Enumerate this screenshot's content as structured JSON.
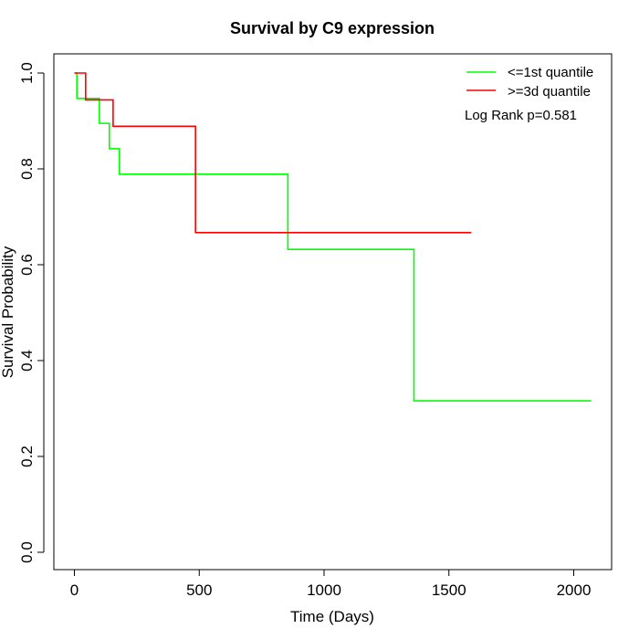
{
  "chart_data": {
    "type": "line",
    "title": "Survival by C9 expression",
    "xlabel": "Time (Days)",
    "ylabel": "Survival Probability",
    "xlim": [
      0,
      2070
    ],
    "ylim": [
      0,
      1.0
    ],
    "x_ticks": [
      "0",
      "500",
      "1000",
      "1500",
      "2000"
    ],
    "y_ticks": [
      "0.0",
      "0.2",
      "0.4",
      "0.6",
      "0.8",
      "1.0"
    ],
    "grid": false,
    "legend_position": "top-right",
    "annotation": "Log Rank p=0.581",
    "series": [
      {
        "name": "<=1st quantile",
        "color": "#00ff00",
        "step": true,
        "x": [
          0,
          10,
          100,
          140,
          180,
          855,
          1360,
          2070
        ],
        "y": [
          1.0,
          0.947,
          0.895,
          0.842,
          0.789,
          0.632,
          0.316,
          0.316
        ]
      },
      {
        "name": ">=3d quantile",
        "color": "#ff0000",
        "step": true,
        "x": [
          0,
          45,
          155,
          485,
          1590
        ],
        "y": [
          1.0,
          0.944,
          0.889,
          0.667,
          0.667
        ]
      }
    ]
  }
}
